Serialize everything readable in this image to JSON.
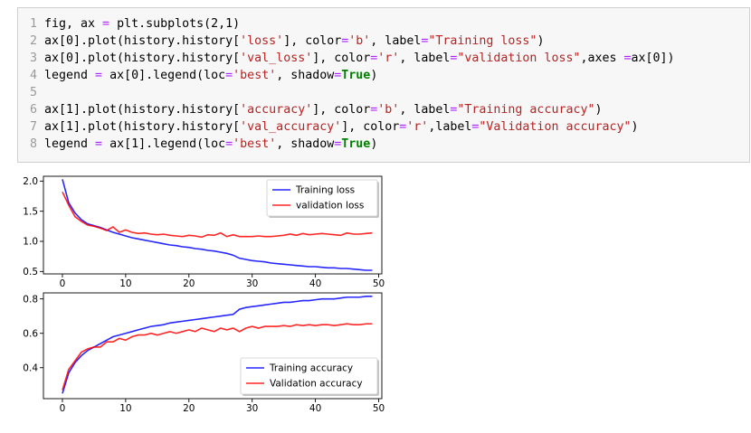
{
  "code_cell": {
    "lines": [
      {
        "n": "1",
        "tokens": [
          [
            "t",
            "fig, ax "
          ],
          [
            "o",
            "="
          ],
          [
            "t",
            " plt.subplots(2,1)"
          ]
        ]
      },
      {
        "n": "2",
        "tokens": [
          [
            "t",
            "ax[0].plot(history.history["
          ],
          [
            "s",
            "'loss'"
          ],
          [
            "t",
            "], color"
          ],
          [
            "o",
            "="
          ],
          [
            "s",
            "'b'"
          ],
          [
            "t",
            ", label"
          ],
          [
            "o",
            "="
          ],
          [
            "s",
            "\"Training loss\""
          ],
          [
            "t",
            ")"
          ]
        ]
      },
      {
        "n": "3",
        "tokens": [
          [
            "t",
            "ax[0].plot(history.history["
          ],
          [
            "s",
            "'val_loss'"
          ],
          [
            "t",
            "], color"
          ],
          [
            "o",
            "="
          ],
          [
            "s",
            "'r'"
          ],
          [
            "t",
            ", label"
          ],
          [
            "o",
            "="
          ],
          [
            "s",
            "\"validation loss\""
          ],
          [
            "t",
            ",axes "
          ],
          [
            "o",
            "="
          ],
          [
            "t",
            "ax[0])"
          ]
        ]
      },
      {
        "n": "4",
        "tokens": [
          [
            "t",
            "legend "
          ],
          [
            "o",
            "="
          ],
          [
            "t",
            " ax[0].legend(loc"
          ],
          [
            "o",
            "="
          ],
          [
            "s",
            "'best'"
          ],
          [
            "t",
            ", shadow"
          ],
          [
            "o",
            "="
          ],
          [
            "k",
            "True"
          ],
          [
            "t",
            ")"
          ]
        ]
      },
      {
        "n": "5",
        "tokens": []
      },
      {
        "n": "6",
        "tokens": [
          [
            "t",
            "ax[1].plot(history.history["
          ],
          [
            "s",
            "'accuracy'"
          ],
          [
            "t",
            "], color"
          ],
          [
            "o",
            "="
          ],
          [
            "s",
            "'b'"
          ],
          [
            "t",
            ", label"
          ],
          [
            "o",
            "="
          ],
          [
            "s",
            "\"Training accuracy\""
          ],
          [
            "t",
            ")"
          ]
        ]
      },
      {
        "n": "7",
        "tokens": [
          [
            "t",
            "ax[1].plot(history.history["
          ],
          [
            "s",
            "'val_accuracy'"
          ],
          [
            "t",
            "], color"
          ],
          [
            "o",
            "="
          ],
          [
            "s",
            "'r'"
          ],
          [
            "t",
            ",label"
          ],
          [
            "o",
            "="
          ],
          [
            "s",
            "\"Validation accuracy\""
          ],
          [
            "t",
            ")"
          ]
        ]
      },
      {
        "n": "8",
        "tokens": [
          [
            "t",
            "legend "
          ],
          [
            "o",
            "="
          ],
          [
            "t",
            " ax[1].legend(loc"
          ],
          [
            "o",
            "="
          ],
          [
            "s",
            "'best'"
          ],
          [
            "t",
            ", shadow"
          ],
          [
            "o",
            "="
          ],
          [
            "k",
            "True"
          ],
          [
            "t",
            ")"
          ]
        ]
      }
    ]
  },
  "chart_data": [
    {
      "type": "line",
      "title": "",
      "xlabel": "",
      "ylabel": "",
      "xlim": [
        -3,
        50.5
      ],
      "ylim": [
        0.46,
        2.08
      ],
      "xticks": [
        0,
        10,
        20,
        30,
        40,
        50
      ],
      "yticks": [
        0.5,
        1.0,
        1.5,
        2.0
      ],
      "ytick_labels": [
        "0.5",
        "1.0",
        "1.5",
        "2.0"
      ],
      "grid": false,
      "legend_position": "top-right",
      "series": [
        {
          "name": "Training loss",
          "color": "#0000ff",
          "values": [
            2.03,
            1.64,
            1.47,
            1.36,
            1.29,
            1.26,
            1.23,
            1.19,
            1.15,
            1.12,
            1.09,
            1.06,
            1.04,
            1.02,
            1.0,
            0.98,
            0.96,
            0.94,
            0.93,
            0.91,
            0.9,
            0.88,
            0.87,
            0.85,
            0.84,
            0.82,
            0.8,
            0.77,
            0.72,
            0.7,
            0.68,
            0.67,
            0.66,
            0.64,
            0.63,
            0.62,
            0.61,
            0.6,
            0.59,
            0.58,
            0.58,
            0.57,
            0.56,
            0.56,
            0.55,
            0.55,
            0.54,
            0.53,
            0.52,
            0.52
          ]
        },
        {
          "name": "validation loss",
          "color": "#ff0000",
          "values": [
            1.82,
            1.6,
            1.41,
            1.33,
            1.27,
            1.25,
            1.22,
            1.18,
            1.24,
            1.15,
            1.19,
            1.15,
            1.13,
            1.14,
            1.12,
            1.11,
            1.12,
            1.1,
            1.09,
            1.08,
            1.1,
            1.09,
            1.07,
            1.11,
            1.1,
            1.14,
            1.08,
            1.11,
            1.08,
            1.08,
            1.08,
            1.09,
            1.08,
            1.08,
            1.09,
            1.1,
            1.12,
            1.1,
            1.13,
            1.11,
            1.12,
            1.13,
            1.12,
            1.11,
            1.1,
            1.14,
            1.12,
            1.12,
            1.13,
            1.14
          ]
        }
      ]
    },
    {
      "type": "line",
      "title": "",
      "xlabel": "",
      "ylabel": "",
      "xlim": [
        -3,
        50.5
      ],
      "ylim": [
        0.22,
        0.835
      ],
      "xticks": [
        0,
        10,
        20,
        30,
        40,
        50
      ],
      "yticks": [
        0.4,
        0.6,
        0.8
      ],
      "ytick_labels": [
        "0.4",
        "0.6",
        "0.8"
      ],
      "grid": false,
      "legend_position": "bottom-right",
      "series": [
        {
          "name": "Training accuracy",
          "color": "#0000ff",
          "values": [
            0.25,
            0.37,
            0.43,
            0.47,
            0.5,
            0.52,
            0.54,
            0.56,
            0.58,
            0.59,
            0.6,
            0.61,
            0.62,
            0.63,
            0.64,
            0.645,
            0.65,
            0.66,
            0.665,
            0.67,
            0.675,
            0.68,
            0.685,
            0.69,
            0.695,
            0.7,
            0.705,
            0.71,
            0.74,
            0.75,
            0.755,
            0.76,
            0.765,
            0.77,
            0.775,
            0.78,
            0.78,
            0.785,
            0.79,
            0.79,
            0.795,
            0.8,
            0.8,
            0.8,
            0.805,
            0.81,
            0.81,
            0.81,
            0.815,
            0.815
          ]
        },
        {
          "name": "Validation accuracy",
          "color": "#ff0000",
          "values": [
            0.27,
            0.39,
            0.44,
            0.49,
            0.51,
            0.52,
            0.52,
            0.55,
            0.55,
            0.57,
            0.56,
            0.58,
            0.59,
            0.59,
            0.6,
            0.59,
            0.6,
            0.61,
            0.6,
            0.61,
            0.62,
            0.61,
            0.63,
            0.62,
            0.61,
            0.63,
            0.62,
            0.63,
            0.61,
            0.63,
            0.64,
            0.63,
            0.64,
            0.64,
            0.64,
            0.645,
            0.64,
            0.65,
            0.645,
            0.65,
            0.645,
            0.65,
            0.65,
            0.645,
            0.65,
            0.655,
            0.65,
            0.65,
            0.655,
            0.655
          ]
        }
      ]
    }
  ]
}
